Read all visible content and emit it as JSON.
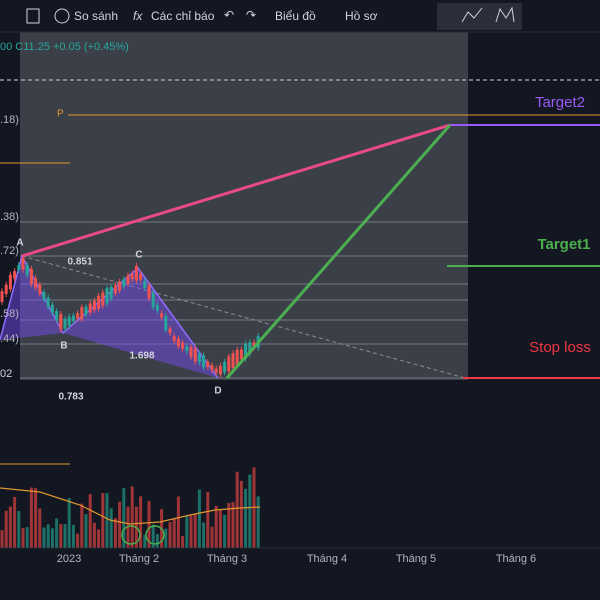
{
  "toolbar": {
    "buttons": [
      "So sánh",
      "Các chỉ báo",
      "Biểu đồ",
      "Hồ sơ"
    ]
  },
  "legend": {
    "ohlc": "00 C11.25 +0.05 (+0.45%)"
  },
  "price_labels": [
    ".18)",
    ".38)",
    ".72)",
    ".58)",
    ".44)",
    "02"
  ],
  "pattern": {
    "points": [
      "A",
      "B",
      "C",
      "D"
    ],
    "ratios": [
      "0.851",
      "1.698",
      "0.783"
    ],
    "marker": "P"
  },
  "levels": {
    "target2": "Target2",
    "target1": "Target1",
    "stop_loss": "Stop loss"
  },
  "x_axis": {
    "labels": [
      "2023",
      "Tháng 2",
      "Tháng 3",
      "Tháng 4",
      "Tháng 5",
      "Tháng 6"
    ]
  }
}
